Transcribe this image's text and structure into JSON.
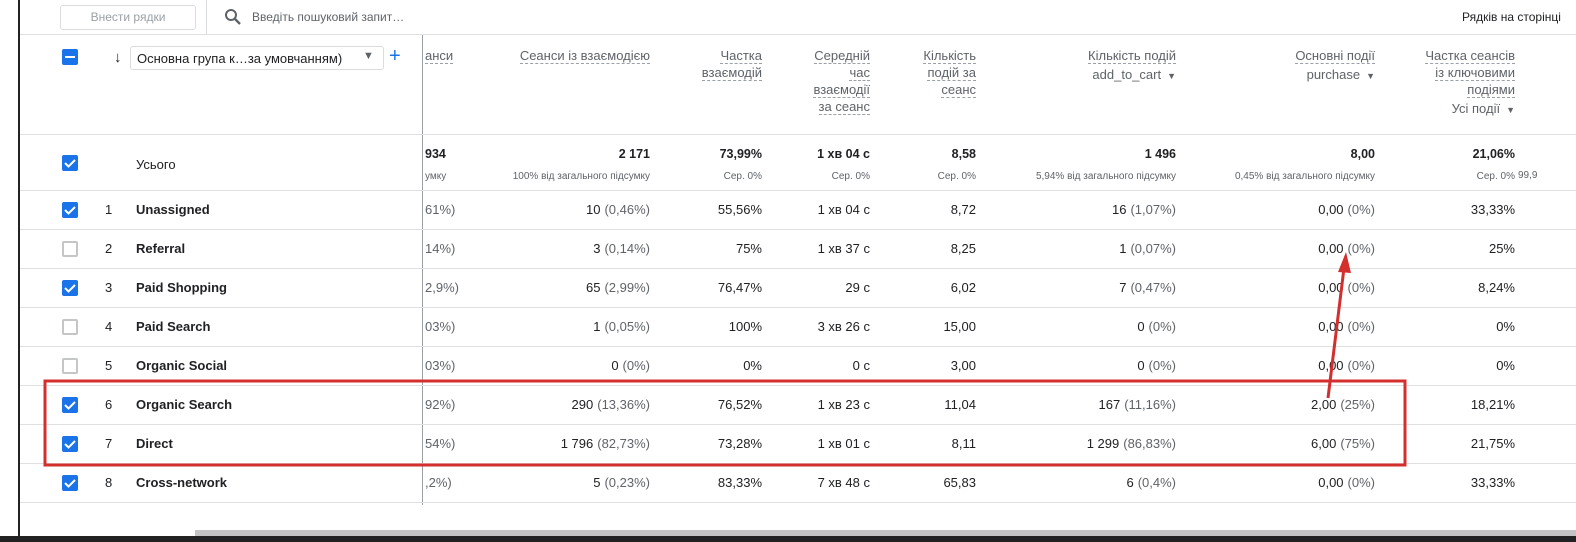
{
  "toolbar": {
    "add_rows": "Внести рядки",
    "search_placeholder": "Введіть пошуковий запит…",
    "rows_per_page": "Рядків на сторінці"
  },
  "table": {
    "dimension": "Основна група к…за умовчанням)",
    "columns": [
      {
        "label": "анси"
      },
      {
        "label": "Сеанси із взаємодією"
      },
      {
        "label": "Частка взаємодій"
      },
      {
        "label": "Середній час взаємодії за сеанс"
      },
      {
        "label": "Кількість подій за сеанс"
      },
      {
        "label": "Кількість подій",
        "sub": "add_to_cart"
      },
      {
        "label": "Основні події",
        "sub": "purchase"
      },
      {
        "label": "Частка сеансів із ключовими подіями",
        "sub": "Усі події"
      }
    ],
    "totals": {
      "label": "Усього",
      "values": [
        "934",
        "2 171",
        "73,99%",
        "1 хв 04 с",
        "8,58",
        "1 496",
        "8,00",
        "21,06%"
      ],
      "notes": [
        "умку",
        "100% від загального підсумку",
        "Сер. 0%",
        "Сер. 0%",
        "Сер. 0%",
        "5,94% від загального підсумку",
        "0,45% від загального підсумку",
        "Сер. 0%"
      ],
      "clipped_note": "99,9"
    },
    "rows": [
      {
        "n": "1",
        "name": "Unassigned",
        "checked": true,
        "cells": [
          [
            "61%)"
          ],
          [
            "10",
            "(0,46%)"
          ],
          [
            "55,56%"
          ],
          [
            "1 хв 04 с"
          ],
          [
            "8,72"
          ],
          [
            "16",
            "(1,07%)"
          ],
          [
            "0,00",
            "(0%)"
          ],
          [
            "33,33%"
          ]
        ]
      },
      {
        "n": "2",
        "name": "Referral",
        "checked": false,
        "cells": [
          [
            "14%)"
          ],
          [
            "3",
            "(0,14%)"
          ],
          [
            "75%"
          ],
          [
            "1 хв 37 с"
          ],
          [
            "8,25"
          ],
          [
            "1",
            "(0,07%)"
          ],
          [
            "0,00",
            "(0%)"
          ],
          [
            "25%"
          ]
        ]
      },
      {
        "n": "3",
        "name": "Paid Shopping",
        "checked": true,
        "cells": [
          [
            "2,9%)"
          ],
          [
            "65",
            "(2,99%)"
          ],
          [
            "76,47%"
          ],
          [
            "29 с"
          ],
          [
            "6,02"
          ],
          [
            "7",
            "(0,47%)"
          ],
          [
            "0,00",
            "(0%)"
          ],
          [
            "8,24%"
          ]
        ]
      },
      {
        "n": "4",
        "name": "Paid Search",
        "checked": false,
        "cells": [
          [
            "03%)"
          ],
          [
            "1",
            "(0,05%)"
          ],
          [
            "100%"
          ],
          [
            "3 хв 26 с"
          ],
          [
            "15,00"
          ],
          [
            "0",
            "(0%)"
          ],
          [
            "0,00",
            "(0%)"
          ],
          [
            "0%"
          ]
        ]
      },
      {
        "n": "5",
        "name": "Organic Social",
        "checked": false,
        "cells": [
          [
            "03%)"
          ],
          [
            "0",
            "(0%)"
          ],
          [
            "0%"
          ],
          [
            "0 с"
          ],
          [
            "3,00"
          ],
          [
            "0",
            "(0%)"
          ],
          [
            "0,00",
            "(0%)"
          ],
          [
            "0%"
          ]
        ]
      },
      {
        "n": "6",
        "name": "Organic Search",
        "checked": true,
        "cells": [
          [
            "92%)"
          ],
          [
            "290",
            "(13,36%)"
          ],
          [
            "76,52%"
          ],
          [
            "1 хв 23 с"
          ],
          [
            "11,04"
          ],
          [
            "167",
            "(11,16%)"
          ],
          [
            "2,00",
            "(25%)"
          ],
          [
            "18,21%"
          ]
        ]
      },
      {
        "n": "7",
        "name": "Direct",
        "checked": true,
        "cells": [
          [
            "54%)"
          ],
          [
            "1 796",
            "(82,73%)"
          ],
          [
            "73,28%"
          ],
          [
            "1 хв 01 с"
          ],
          [
            "8,11"
          ],
          [
            "1 299",
            "(86,83%)"
          ],
          [
            "6,00",
            "(75%)"
          ],
          [
            "21,75%"
          ]
        ]
      },
      {
        "n": "8",
        "name": "Cross-network",
        "checked": true,
        "cells": [
          [
            ",2%)"
          ],
          [
            "5",
            "(0,23%)"
          ],
          [
            "83,33%"
          ],
          [
            "7 хв 48 с"
          ],
          [
            "65,83"
          ],
          [
            "6",
            "(0,4%)"
          ],
          [
            "0,00",
            "(0%)"
          ],
          [
            "33,33%"
          ]
        ]
      }
    ]
  }
}
